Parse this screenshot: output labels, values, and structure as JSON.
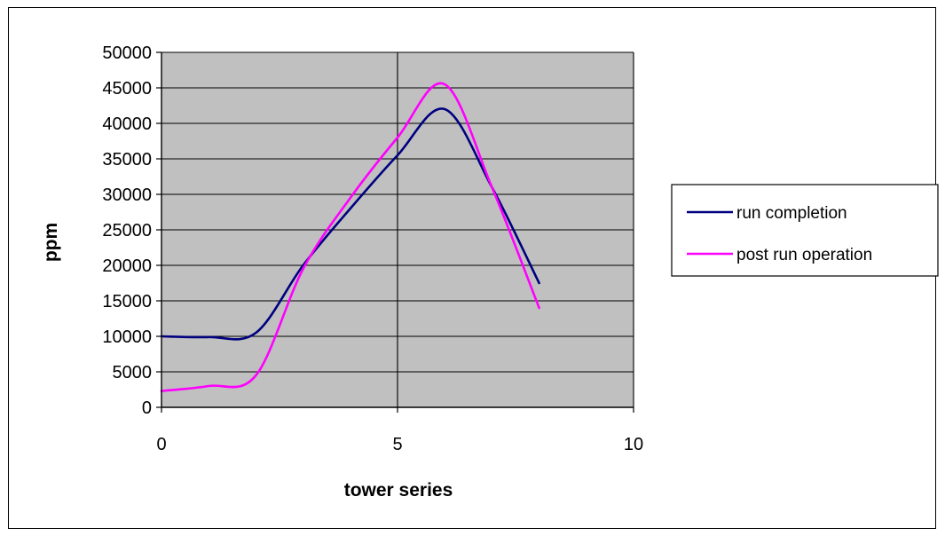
{
  "chart_data": {
    "type": "line",
    "title": "",
    "xlabel": "tower series",
    "ylabel": "ppm",
    "xlim": [
      0,
      10
    ],
    "ylim": [
      0,
      50000
    ],
    "x_ticks": [
      0,
      5,
      10
    ],
    "y_ticks": [
      0,
      5000,
      10000,
      15000,
      20000,
      25000,
      30000,
      35000,
      40000,
      45000,
      50000
    ],
    "x_tick_labels": [
      "0",
      "5",
      "10"
    ],
    "y_tick_labels": [
      "0",
      "5000",
      "10000",
      "15000",
      "20000",
      "25000",
      "30000",
      "35000",
      "40000",
      "45000",
      "50000"
    ],
    "grid": "horizontal and vertical major gridlines",
    "plot_background": "#c0c0c0",
    "legend_position": "right",
    "smooth": true,
    "series": [
      {
        "name": "run completion",
        "color": "#000080",
        "x": [
          0,
          1,
          2,
          3,
          4,
          5,
          6,
          7,
          8
        ],
        "y": [
          10000,
          9900,
          10500,
          20000,
          28000,
          35500,
          42000,
          31000,
          17500
        ]
      },
      {
        "name": "post run operation",
        "color": "#ff00ff",
        "x": [
          0,
          1,
          2,
          3,
          4,
          5,
          6,
          7,
          8
        ],
        "y": [
          2300,
          3000,
          4500,
          19500,
          29500,
          38000,
          45500,
          31000,
          14000
        ]
      }
    ]
  }
}
